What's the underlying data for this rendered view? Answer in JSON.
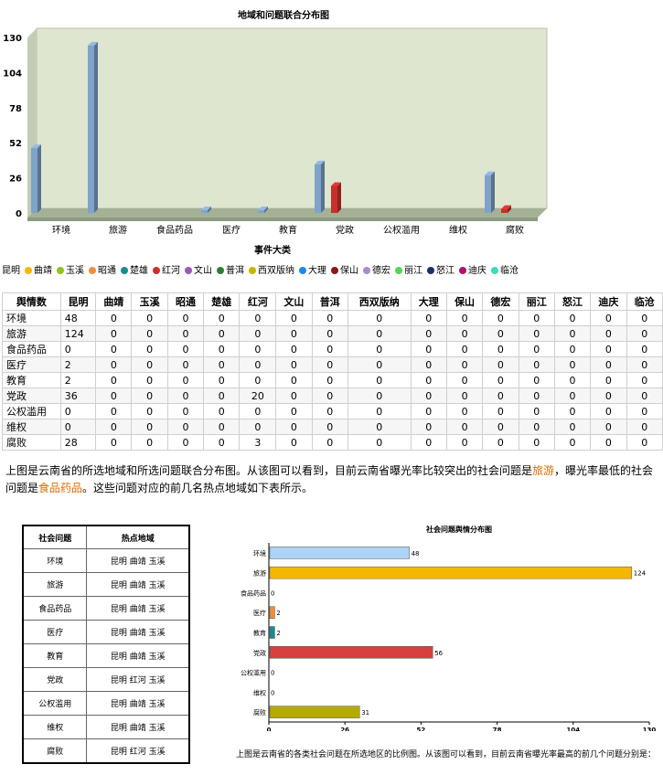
{
  "chart_data": [
    {
      "type": "bar",
      "title": "地域和问题联合分布图",
      "xlabel": "事件大类",
      "ylabel": "",
      "ylim": [
        0,
        130
      ],
      "yticks": [
        0,
        26,
        52,
        78,
        104,
        130
      ],
      "categories": [
        "环境",
        "旅游",
        "食品药品",
        "医疗",
        "教育",
        "党政",
        "公权滥用",
        "维权",
        "腐败"
      ],
      "series": [
        {
          "name": "昆明",
          "color": "#7fa3c9",
          "values": [
            48,
            124,
            0,
            2,
            2,
            36,
            0,
            0,
            28
          ]
        },
        {
          "name": "曲靖",
          "color": "#f5b800",
          "values": [
            0,
            0,
            0,
            0,
            0,
            0,
            0,
            0,
            0
          ]
        },
        {
          "name": "玉溪",
          "color": "#8fc31f",
          "values": [
            0,
            0,
            0,
            0,
            0,
            0,
            0,
            0,
            0
          ]
        },
        {
          "name": "昭通",
          "color": "#ef8f3c",
          "values": [
            0,
            0,
            0,
            0,
            0,
            0,
            0,
            0,
            0
          ]
        },
        {
          "name": "楚雄",
          "color": "#1a8c8c",
          "values": [
            0,
            0,
            0,
            0,
            0,
            0,
            0,
            0,
            0
          ]
        },
        {
          "name": "红河",
          "color": "#c9302c",
          "values": [
            0,
            0,
            0,
            0,
            0,
            20,
            0,
            0,
            3
          ]
        },
        {
          "name": "文山",
          "color": "#9b59b6",
          "values": [
            0,
            0,
            0,
            0,
            0,
            0,
            0,
            0,
            0
          ]
        },
        {
          "name": "普洱",
          "color": "#2e7d32",
          "values": [
            0,
            0,
            0,
            0,
            0,
            0,
            0,
            0,
            0
          ]
        },
        {
          "name": "西双版纳",
          "color": "#c8b400",
          "values": [
            0,
            0,
            0,
            0,
            0,
            0,
            0,
            0,
            0
          ]
        },
        {
          "name": "大理",
          "color": "#1e88e5",
          "values": [
            0,
            0,
            0,
            0,
            0,
            0,
            0,
            0,
            0
          ]
        },
        {
          "name": "保山",
          "color": "#8b1a1a",
          "values": [
            0,
            0,
            0,
            0,
            0,
            0,
            0,
            0,
            0
          ]
        },
        {
          "name": "德宏",
          "color": "#a98bd0",
          "values": [
            0,
            0,
            0,
            0,
            0,
            0,
            0,
            0,
            0
          ]
        },
        {
          "name": "丽江",
          "color": "#55d455",
          "values": [
            0,
            0,
            0,
            0,
            0,
            0,
            0,
            0,
            0
          ]
        },
        {
          "name": "怒江",
          "color": "#1a2e6e",
          "values": [
            0,
            0,
            0,
            0,
            0,
            0,
            0,
            0,
            0
          ]
        },
        {
          "name": "迪庆",
          "color": "#b0126e",
          "values": [
            0,
            0,
            0,
            0,
            0,
            0,
            0,
            0,
            0
          ]
        },
        {
          "name": "临沧",
          "color": "#3ddbb8",
          "values": [
            0,
            0,
            0,
            0,
            0,
            0,
            0,
            0,
            0
          ]
        }
      ],
      "legend": "bottom",
      "grid": false
    },
    {
      "type": "bar",
      "orientation": "horizontal",
      "title": "社会问题舆情分布图",
      "xlabel": "",
      "ylabel": "",
      "xlim": [
        0,
        130
      ],
      "xticks": [
        0,
        26,
        52,
        78,
        104,
        130
      ],
      "categories": [
        "环境",
        "旅游",
        "食品药品",
        "医疗",
        "教育",
        "党政",
        "公权滥用",
        "维权",
        "腐败"
      ],
      "values": [
        48,
        124,
        0,
        2,
        2,
        56,
        0,
        0,
        31
      ],
      "colors": [
        "#aed4f5",
        "#f5b800",
        "#f5b800",
        "#ef8f3c",
        "#1a8c8c",
        "#d84040",
        "#888888",
        "#888888",
        "#b5ab00"
      ],
      "data_labels": true,
      "grid": false
    }
  ],
  "table1": {
    "header": [
      "舆情数",
      "昆明",
      "曲靖",
      "玉溪",
      "昭通",
      "楚雄",
      "红河",
      "文山",
      "普洱",
      "西双版纳",
      "大理",
      "保山",
      "德宏",
      "丽江",
      "怒江",
      "迪庆",
      "临沧"
    ],
    "rows": [
      [
        "环境",
        "48",
        "0",
        "0",
        "0",
        "0",
        "0",
        "0",
        "0",
        "0",
        "0",
        "0",
        "0",
        "0",
        "0",
        "0",
        "0"
      ],
      [
        "旅游",
        "124",
        "0",
        "0",
        "0",
        "0",
        "0",
        "0",
        "0",
        "0",
        "0",
        "0",
        "0",
        "0",
        "0",
        "0",
        "0"
      ],
      [
        "食品药品",
        "0",
        "0",
        "0",
        "0",
        "0",
        "0",
        "0",
        "0",
        "0",
        "0",
        "0",
        "0",
        "0",
        "0",
        "0",
        "0"
      ],
      [
        "医疗",
        "2",
        "0",
        "0",
        "0",
        "0",
        "0",
        "0",
        "0",
        "0",
        "0",
        "0",
        "0",
        "0",
        "0",
        "0",
        "0"
      ],
      [
        "教育",
        "2",
        "0",
        "0",
        "0",
        "0",
        "0",
        "0",
        "0",
        "0",
        "0",
        "0",
        "0",
        "0",
        "0",
        "0",
        "0"
      ],
      [
        "党政",
        "36",
        "0",
        "0",
        "0",
        "0",
        "20",
        "0",
        "0",
        "0",
        "0",
        "0",
        "0",
        "0",
        "0",
        "0",
        "0"
      ],
      [
        "公权滥用",
        "0",
        "0",
        "0",
        "0",
        "0",
        "0",
        "0",
        "0",
        "0",
        "0",
        "0",
        "0",
        "0",
        "0",
        "0",
        "0"
      ],
      [
        "维权",
        "0",
        "0",
        "0",
        "0",
        "0",
        "0",
        "0",
        "0",
        "0",
        "0",
        "0",
        "0",
        "0",
        "0",
        "0",
        "0"
      ],
      [
        "腐败",
        "28",
        "0",
        "0",
        "0",
        "0",
        "3",
        "0",
        "0",
        "0",
        "0",
        "0",
        "0",
        "0",
        "0",
        "0",
        "0"
      ]
    ]
  },
  "paragraph1": {
    "part1": "上图是云南省的所选地域和所选问题联合分布图。从该图可以看到，目前云南省曝光率比较突出的社会问题是",
    "highlight1": "旅游",
    "part2": "，曝光率最低的社会问题是",
    "highlight2": "食品药品",
    "part3": "。这些问题对应的前几名热点地域如下表所示。",
    "highlight_color": "#e06c00"
  },
  "table2": {
    "header": [
      "社会问题",
      "热点地域"
    ],
    "rows": [
      [
        "环境",
        "昆明 曲靖 玉溪"
      ],
      [
        "旅游",
        "昆明 曲靖 玉溪"
      ],
      [
        "食品药品",
        "昆明 曲靖 玉溪"
      ],
      [
        "医疗",
        "昆明 曲靖 玉溪"
      ],
      [
        "教育",
        "昆明 曲靖 玉溪"
      ],
      [
        "党政",
        "昆明 红河 玉溪"
      ],
      [
        "公权滥用",
        "昆明 曲靖 玉溪"
      ],
      [
        "维权",
        "昆明 曲靖 玉溪"
      ],
      [
        "腐败",
        "昆明 红河 玉溪"
      ]
    ]
  },
  "paragraph2": "上图是云南省的各类社会问题在所选地区的比例图。从该图可以看到，目前云南省曝光率最高的前几个问题分别是："
}
